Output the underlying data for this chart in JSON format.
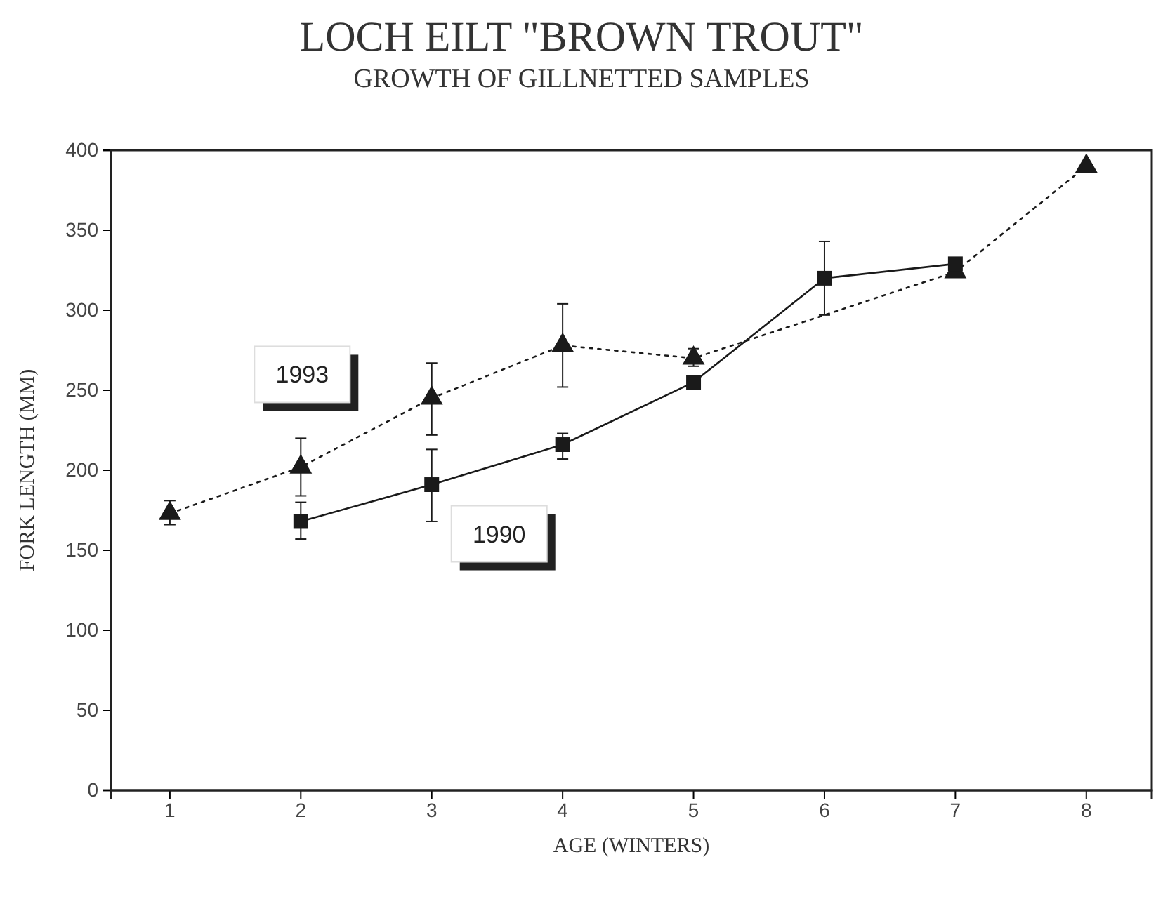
{
  "chart_data": {
    "type": "line",
    "title": "LOCH EILT \"BROWN TROUT\"",
    "subtitle": "GROWTH OF GILLNETTED SAMPLES",
    "xlabel": "AGE (WINTERS)",
    "ylabel": "FORK LENGTH (MM)",
    "xlim": [
      0.55,
      8.5
    ],
    "xticks": [
      1,
      2,
      3,
      4,
      5,
      6,
      7,
      8
    ],
    "ylim": [
      0,
      400
    ],
    "yticks": [
      0,
      50,
      100,
      150,
      200,
      250,
      300,
      350,
      400
    ],
    "grid": false,
    "series": [
      {
        "name": "1993",
        "color": "#1a1a1a",
        "marker": "triangle",
        "line_style": "dotted",
        "x": [
          1,
          2,
          3,
          4,
          5,
          7,
          8
        ],
        "values": [
          173,
          202,
          245,
          278,
          270,
          324,
          390
        ],
        "errors": [
          [
            166,
            181
          ],
          [
            184,
            220
          ],
          [
            222,
            267
          ],
          [
            252,
            304
          ],
          [
            265,
            276
          ],
          null,
          null
        ]
      },
      {
        "name": "1990",
        "color": "#1a1a1a",
        "marker": "square",
        "line_style": "solid",
        "x": [
          2,
          3,
          4,
          5,
          6,
          7
        ],
        "values": [
          168,
          191,
          216,
          255,
          320,
          329
        ],
        "errors": [
          [
            157,
            180
          ],
          [
            168,
            213
          ],
          [
            207,
            223
          ],
          null,
          [
            297,
            343
          ],
          null
        ]
      }
    ]
  }
}
